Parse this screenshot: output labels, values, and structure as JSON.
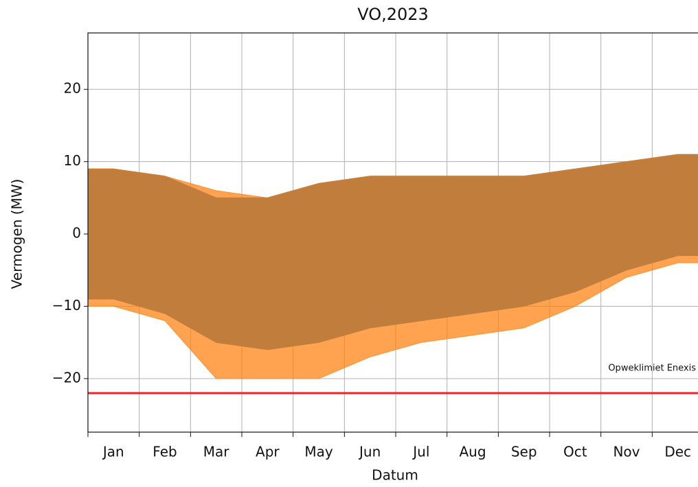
{
  "chart_data": {
    "type": "range-area",
    "title": "VO,2023",
    "xlabel": "Datum",
    "ylabel": "Vermogen (MW)",
    "categories": [
      "Jan",
      "Feb",
      "Mar",
      "Apr",
      "May",
      "Jun",
      "Jul",
      "Aug",
      "Sep",
      "Oct",
      "Nov",
      "Dec"
    ],
    "series": [
      {
        "color": "#1f77b4",
        "opacity": 1,
        "high": [
          9,
          8,
          5,
          5,
          7,
          8,
          8,
          8,
          8,
          9,
          10,
          11
        ],
        "low": [
          -9,
          -11,
          -15,
          -16,
          -15,
          -13,
          -12,
          -11,
          -10,
          -8,
          -5,
          -3
        ]
      },
      {
        "color": "#ff7f0e",
        "opacity": 0.72,
        "high": [
          9,
          8,
          6,
          5,
          7,
          8,
          8,
          8,
          8,
          9,
          10,
          11
        ],
        "low": [
          -10,
          -12,
          -20,
          -20,
          -20,
          -17,
          -15,
          -14,
          -13,
          -10,
          -6,
          -4
        ]
      }
    ],
    "limit": {
      "value": -22,
      "label": "Opweklimiet Enexis",
      "color": "#e8262a"
    },
    "ylim": [
      -27.4,
      27.8
    ],
    "yticks": [
      {
        "value": -20,
        "label": "−20"
      },
      {
        "value": -10,
        "label": "−10"
      },
      0,
      10,
      20
    ],
    "grid": true
  }
}
